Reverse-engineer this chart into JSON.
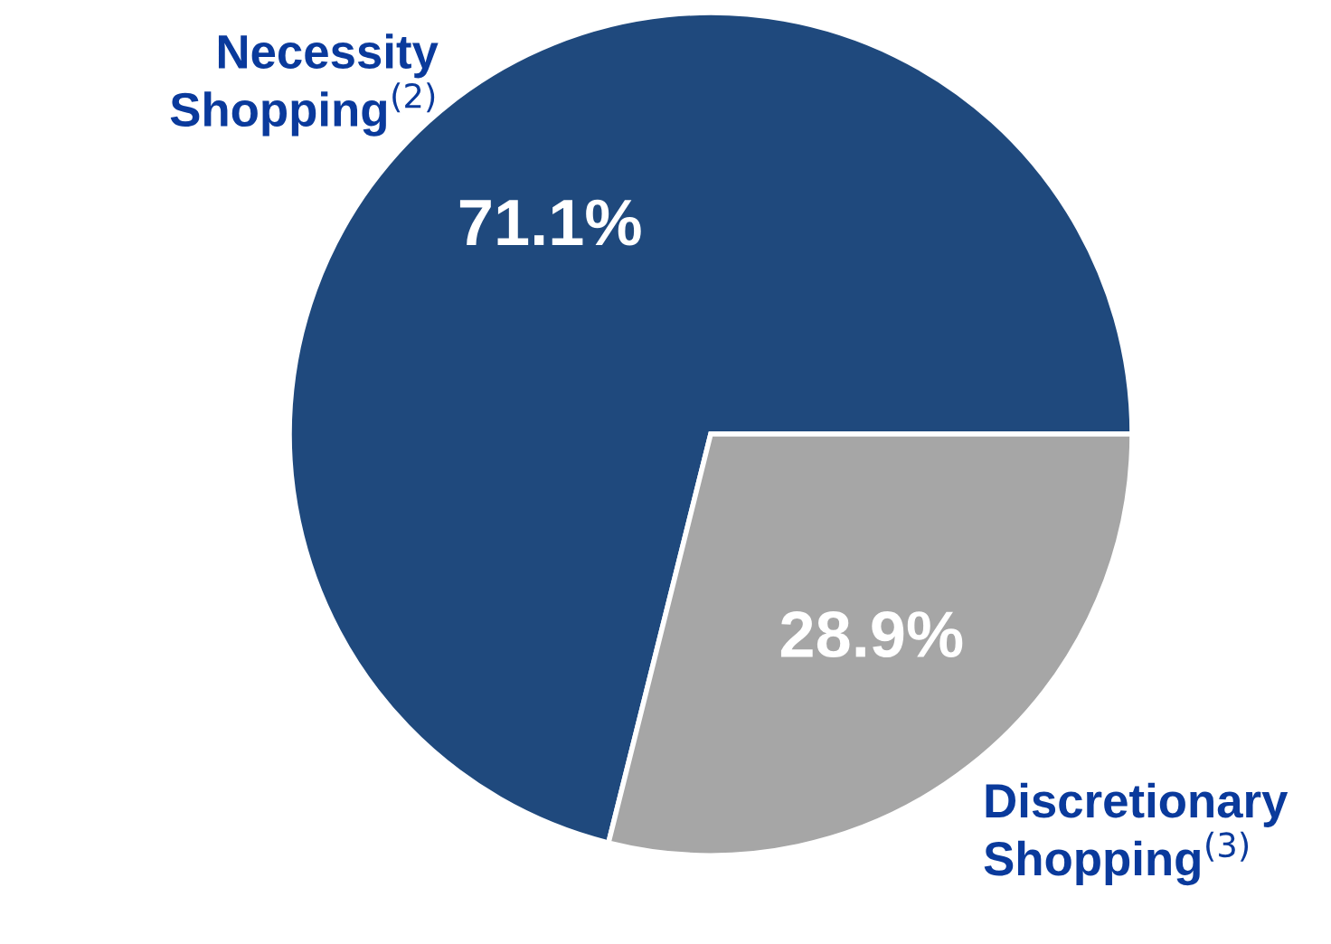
{
  "chart_data": {
    "type": "pie",
    "categories": [
      "Necessity\nShopping$^{(2)}$",
      "Discretionary\nShopping$^{(3)}$"
    ],
    "values": [
      71.1,
      28.9
    ],
    "colors": [
      "#1f497d",
      "#a6a6a6"
    ],
    "value_labels": [
      "71.1%",
      "28.9%"
    ],
    "legend": false
  }
}
